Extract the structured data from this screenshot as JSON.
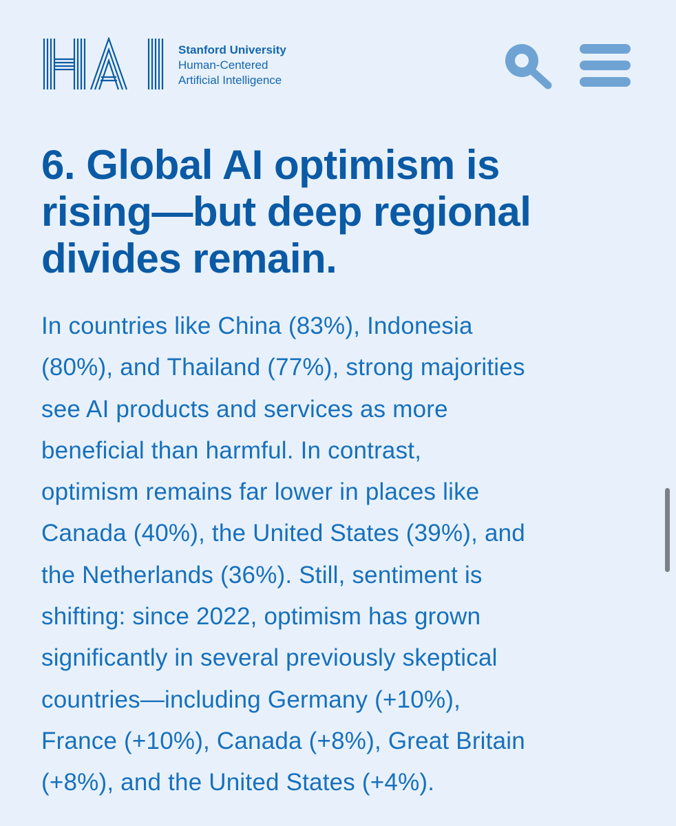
{
  "header": {
    "logo": {
      "text": "HAI",
      "icon": "hai-logo"
    },
    "org": {
      "line1": "Stanford University",
      "line2": "Human-Centered",
      "line3": "Artificial Intelligence"
    },
    "search_icon": "search-icon",
    "menu_icon": "hamburger-menu-icon"
  },
  "article": {
    "headline_line1": "6. Global AI optimism is",
    "headline_line2": "rising—but deep regional",
    "headline_line3": "divides remain.",
    "body_lines": [
      "In countries like China (83%), Indonesia",
      "(80%), and Thailand (77%), strong majorities",
      "see AI products and services as more",
      "beneficial than harmful. In contrast,",
      "optimism remains far lower in places like",
      "Canada (40%), the United States (39%), and",
      "the Netherlands (36%). Still, sentiment is",
      "shifting: since 2022, optimism has grown",
      "significantly in several previously skeptical",
      "countries—including Germany (+10%),",
      "France (+10%), Canada (+8%), Great Britain",
      "(+8%), and the United States (+4%)."
    ]
  },
  "colors": {
    "background": "#e8f1fb",
    "headline": "#0b5aa5",
    "body": "#1770bd",
    "icon": "#6fa3d4"
  }
}
